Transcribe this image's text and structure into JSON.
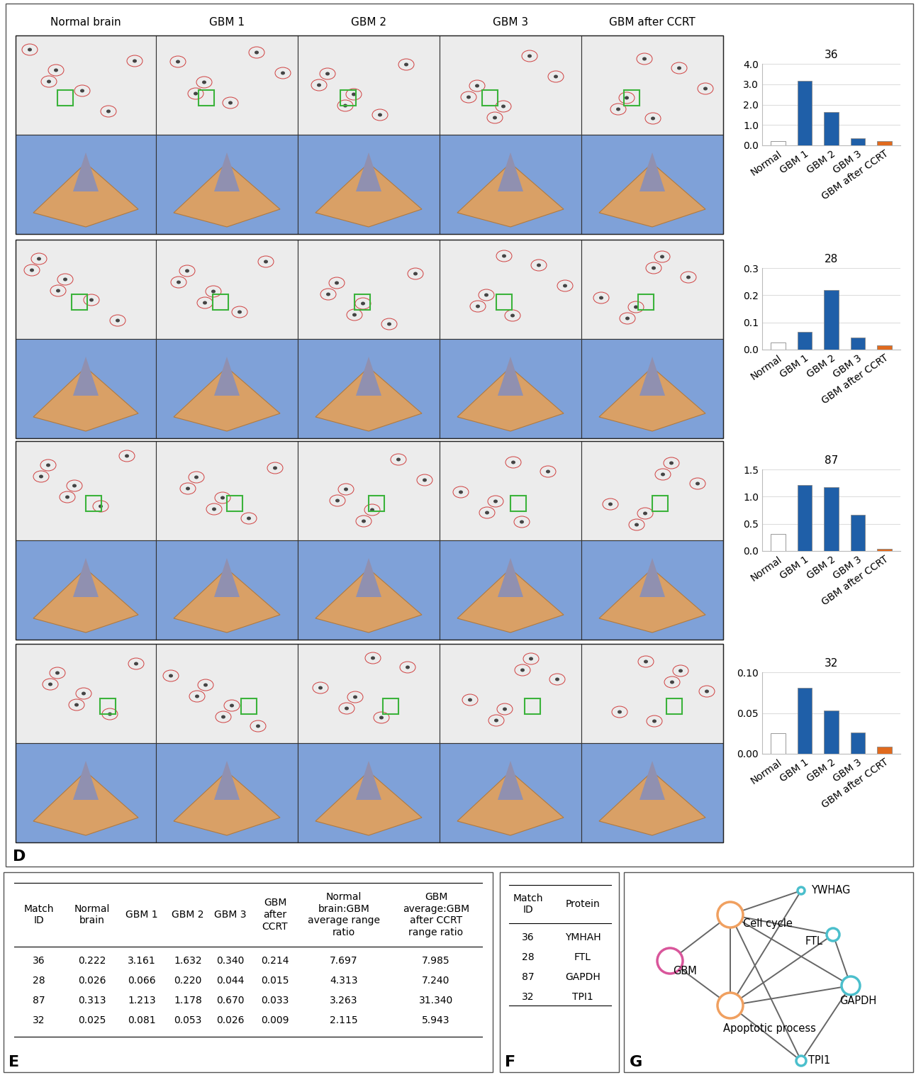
{
  "chart_data": [
    {
      "type": "bar",
      "title": "36",
      "categories": [
        "Normal",
        "GBM 1",
        "GBM 2",
        "GBM 3",
        "GBM after CCRT"
      ],
      "values": [
        0.222,
        3.161,
        1.632,
        0.34,
        0.214
      ],
      "colors": [
        "#ffffff",
        "#1f5fa8",
        "#1f5fa8",
        "#1f5fa8",
        "#e06a1e"
      ],
      "ylim": [
        0,
        4.0
      ],
      "yticks": [
        {
          "value": 0,
          "label": "0.0"
        },
        {
          "value": 1,
          "label": "1.0"
        },
        {
          "value": 2,
          "label": "2.0"
        },
        {
          "value": 3,
          "label": "3.0"
        },
        {
          "value": 4,
          "label": "4.0"
        }
      ],
      "grid": true
    },
    {
      "type": "bar",
      "title": "28",
      "categories": [
        "Normal",
        "GBM 1",
        "GBM 2",
        "GBM 3",
        "GBM after CCRT"
      ],
      "values": [
        0.026,
        0.066,
        0.22,
        0.044,
        0.015
      ],
      "colors": [
        "#ffffff",
        "#1f5fa8",
        "#1f5fa8",
        "#1f5fa8",
        "#e06a1e"
      ],
      "ylim": [
        0,
        0.3
      ],
      "yticks": [
        {
          "value": 0,
          "label": "0.0"
        },
        0.1,
        0.2,
        0.3
      ],
      "grid": true
    },
    {
      "type": "bar",
      "title": "87",
      "categories": [
        "Normal",
        "GBM 1",
        "GBM 2",
        "GBM 3",
        "GBM after CCRT"
      ],
      "values": [
        0.313,
        1.213,
        1.178,
        0.67,
        0.033
      ],
      "colors": [
        "#ffffff",
        "#1f5fa8",
        "#1f5fa8",
        "#1f5fa8",
        "#e06a1e"
      ],
      "ylim": [
        0,
        1.5
      ],
      "yticks": [
        {
          "value": 0,
          "label": "0.0"
        },
        0.5,
        {
          "value": 1,
          "label": "1.0"
        },
        1.5
      ],
      "grid": true
    },
    {
      "type": "bar",
      "title": "32",
      "categories": [
        "Normal",
        "GBM 1",
        "GBM 2",
        "GBM 3",
        "GBM after CCRT"
      ],
      "values": [
        0.025,
        0.081,
        0.053,
        0.026,
        0.009
      ],
      "colors": [
        "#ffffff",
        "#1f5fa8",
        "#1f5fa8",
        "#1f5fa8",
        "#e06a1e"
      ],
      "ylim": [
        0,
        0.1
      ],
      "yticks": [
        {
          "value": 0,
          "label": "0.00"
        },
        0.05,
        {
          "value": 0.1,
          "label": "0.10"
        }
      ],
      "grid": true
    }
  ],
  "panel_d": {
    "label": "D",
    "columns": [
      "Normal brain",
      "GBM 1",
      "GBM 2",
      "GBM 3",
      "GBM after CCRT"
    ]
  },
  "table_e": {
    "label": "E",
    "header": [
      "Match\nID",
      "Normal\nbrain",
      "GBM 1",
      "GBM 2",
      "GBM 3",
      "GBM\nafter\nCCRT",
      "Normal\nbrain:GBM\naverage range\nratio",
      "GBM\naverage:GBM\nafter CCRT\nrange ratio"
    ],
    "rows": [
      [
        "36",
        "0.222",
        "3.161",
        "1.632",
        "0.340",
        "0.214",
        "7.697",
        "7.985"
      ],
      [
        "28",
        "0.026",
        "0.066",
        "0.220",
        "0.044",
        "0.015",
        "4.313",
        "7.240"
      ],
      [
        "87",
        "0.313",
        "1.213",
        "1.178",
        "0.670",
        "0.033",
        "3.263",
        "31.340"
      ],
      [
        "32",
        "0.025",
        "0.081",
        "0.053",
        "0.026",
        "0.009",
        "2.115",
        "5.943"
      ]
    ]
  },
  "table_f": {
    "label": "F",
    "header": [
      "Match\nID",
      "Protein"
    ],
    "rows": [
      [
        "36",
        "YMHAH"
      ],
      [
        "28",
        "FTL"
      ],
      [
        "87",
        "GAPDH"
      ],
      [
        "32",
        "TPI1"
      ]
    ]
  },
  "network_g": {
    "label": "G",
    "nodes": [
      {
        "label": "YWHAG",
        "color": "#4bbfcc"
      },
      {
        "label": "Cell cycle",
        "color": "#f0a060"
      },
      {
        "label": "FTL",
        "color": "#4bbfcc"
      },
      {
        "label": "GBM",
        "color": "#d9569b"
      },
      {
        "label": "GAPDH",
        "color": "#4bbfcc"
      },
      {
        "label": "Apoptotic process",
        "color": "#f0a060"
      },
      {
        "label": "TPI1",
        "color": "#4bbfcc"
      }
    ],
    "edges": [
      [
        0,
        1
      ],
      [
        0,
        5
      ],
      [
        1,
        3
      ],
      [
        3,
        5
      ],
      [
        1,
        2
      ],
      [
        1,
        4
      ],
      [
        1,
        6
      ],
      [
        5,
        2
      ],
      [
        5,
        4
      ],
      [
        5,
        6
      ],
      [
        2,
        4
      ],
      [
        4,
        6
      ],
      [
        1,
        5
      ]
    ]
  }
}
